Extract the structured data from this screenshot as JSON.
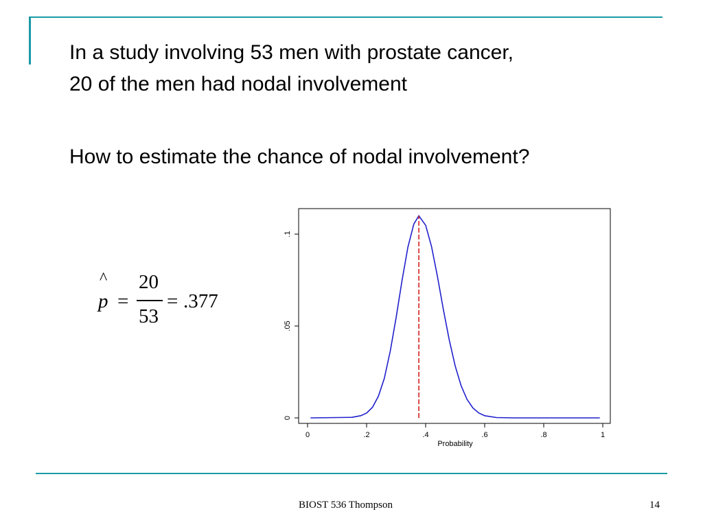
{
  "slide": {
    "line1": "In a study involving 53 men with prostate cancer,",
    "line2": "20 of the men had nodal involvement",
    "question": "How to estimate the chance of nodal involvement?"
  },
  "formula": {
    "hat": "^",
    "variable": "p",
    "equals1": "=",
    "numerator": "20",
    "denominator": "53",
    "equals2": "=",
    "result": ".377"
  },
  "footer": {
    "center": "BIOST 536 Thompson",
    "page": "14"
  },
  "colors": {
    "accent": "#1a9aa6",
    "curve": "#1f1fcc",
    "marker": "#d42020"
  },
  "chart_data": {
    "type": "line",
    "xlabel": "Probability",
    "ylabel": "",
    "xlim": [
      0,
      1
    ],
    "ylim": [
      0,
      0.112
    ],
    "xticks": [
      0,
      0.2,
      0.4,
      0.6,
      0.8,
      1
    ],
    "xtick_labels": [
      "0",
      ".2",
      ".4",
      ".6",
      ".8",
      "1"
    ],
    "yticks": [
      0,
      0.05,
      0.1
    ],
    "ytick_labels": [
      "0",
      ".05",
      ".1"
    ],
    "grid": false,
    "legend": "none",
    "series": [
      {
        "x": [
          0.01,
          0.15,
          0.18,
          0.2,
          0.22,
          0.24,
          0.26,
          0.28,
          0.3,
          0.32,
          0.34,
          0.36,
          0.377,
          0.4,
          0.42,
          0.44,
          0.46,
          0.48,
          0.5,
          0.52,
          0.54,
          0.56,
          0.58,
          0.6,
          0.64,
          0.7,
          0.99
        ],
        "y": [
          0,
          0.0003,
          0.0012,
          0.0026,
          0.0058,
          0.0118,
          0.0215,
          0.0362,
          0.0546,
          0.0747,
          0.093,
          0.1055,
          0.11,
          0.1048,
          0.0932,
          0.0769,
          0.059,
          0.0424,
          0.0283,
          0.0176,
          0.0101,
          0.0054,
          0.0027,
          0.0012,
          0.0002,
          0,
          0
        ]
      }
    ],
    "vline": {
      "x": 0.377
    }
  }
}
